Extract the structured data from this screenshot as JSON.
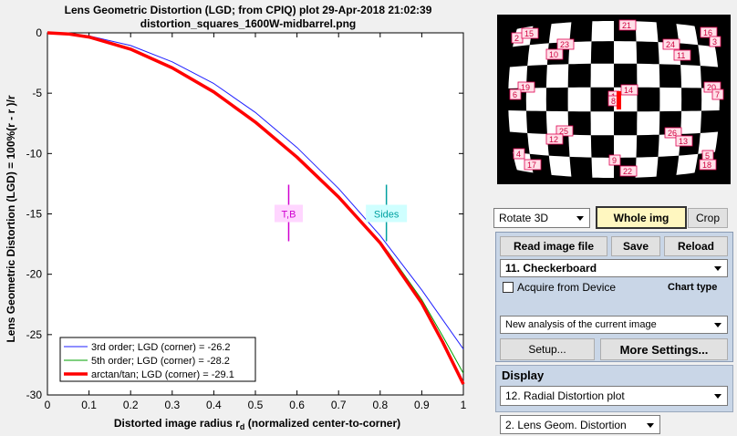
{
  "plot": {
    "title_line1": "Lens Geometric Distortion (LGD; from CPIQ) plot   29-Apr-2018 21:02:39",
    "title_line2": "distortion_squares_1600W-midbarrel.png",
    "xlabel": "Distorted image radius r",
    "xlabel_sub": "d",
    "xlabel_tail": "  (normalized center-to-corner)",
    "ylabel": "Lens Geometric Distortion (LGD) = 100%(r  - r )/r"
  },
  "chart_data": {
    "type": "line",
    "xlim": [
      0,
      1
    ],
    "ylim": [
      -30,
      0
    ],
    "xticks": [
      "0",
      "0.1",
      "0.2",
      "0.3",
      "0.4",
      "0.5",
      "0.6",
      "0.7",
      "0.8",
      "0.9",
      "1"
    ],
    "yticks": [
      "0",
      "-5",
      "-10",
      "-15",
      "-20",
      "-25",
      "-30"
    ],
    "grid": false,
    "legend_position": "bottom-left",
    "series": [
      {
        "name": "3rd order;   LGD (corner) = -26.2",
        "color": "#1f1fff",
        "width": 1,
        "x": [
          0,
          0.05,
          0.1,
          0.2,
          0.3,
          0.4,
          0.5,
          0.6,
          0.7,
          0.8,
          0.82,
          0.9,
          1.0
        ],
        "y": [
          0,
          -0.07,
          -0.26,
          -1.05,
          -2.4,
          -4.2,
          -6.6,
          -9.5,
          -12.9,
          -16.8,
          -17.7,
          -21.3,
          -26.2
        ]
      },
      {
        "name": "5th order;   LGD (corner) = -28.2",
        "color": "#00a000",
        "width": 1,
        "x": [
          0,
          0.05,
          0.1,
          0.2,
          0.3,
          0.4,
          0.5,
          0.6,
          0.7,
          0.8,
          0.82,
          0.9,
          0.95,
          1.0
        ],
        "y": [
          0,
          -0.09,
          -0.34,
          -1.35,
          -2.9,
          -4.9,
          -7.4,
          -10.2,
          -13.5,
          -17.3,
          -18.2,
          -22.1,
          -25.1,
          -28.2
        ]
      },
      {
        "name": "arctan/tan; LGD (corner) = -29.1",
        "color": "#ff0000",
        "width": 3.5,
        "x": [
          0,
          0.05,
          0.1,
          0.2,
          0.3,
          0.4,
          0.5,
          0.6,
          0.7,
          0.8,
          0.82,
          0.9,
          0.95,
          1.0
        ],
        "y": [
          0,
          -0.09,
          -0.35,
          -1.35,
          -2.9,
          -4.9,
          -7.4,
          -10.3,
          -13.6,
          -17.4,
          -18.4,
          -22.4,
          -25.6,
          -29.1
        ]
      }
    ],
    "annotations": [
      {
        "label": "T,B",
        "x": 0.58,
        "y": -15,
        "color": "#d000d0",
        "bg": "#ffd6ff"
      },
      {
        "label": "Sides",
        "x": 0.815,
        "y": -15,
        "color": "#00a0a0",
        "bg": "#cfffff"
      }
    ]
  },
  "thumbnail": {
    "labels": [
      "2",
      "15",
      "21",
      "16",
      "3",
      "23",
      "10",
      "24",
      "11",
      "19",
      "6",
      "14",
      "1",
      "20",
      "7",
      "25",
      "12",
      "26",
      "13",
      "4",
      "17",
      "9",
      "22",
      "5",
      "18",
      "8"
    ]
  },
  "controls": {
    "rotate_select": "Rotate 3D",
    "whole_img_button": "Whole img",
    "crop_button": "Crop",
    "read_image_button": "Read image file",
    "save_button": "Save",
    "reload_button": "Reload",
    "chart_select": "11. Checkerboard",
    "acquire_checkbox_label": "Acquire from Device",
    "chart_type_label": "Chart type",
    "analysis_select": "New analysis of the current image",
    "setup_button": "Setup...",
    "more_settings_button": "More Settings...",
    "display_label": "Display",
    "display_select": "12. Radial Distortion plot",
    "distortion_select": "2.  Lens Geom. Distortion"
  },
  "colors": {
    "panel_bg": "#c9d6e7",
    "whole_img_bg": "#fff7c0"
  }
}
